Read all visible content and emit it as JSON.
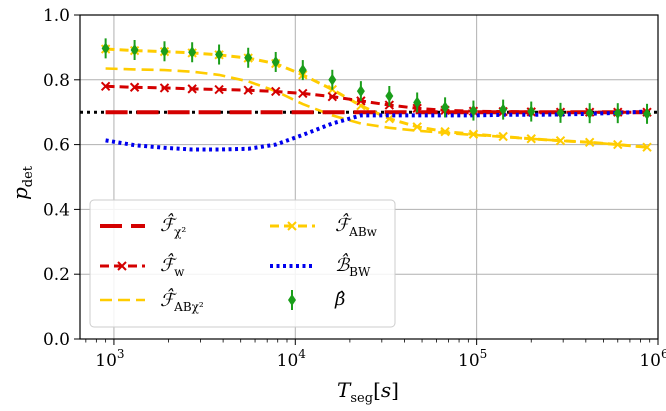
{
  "chart_data": {
    "type": "line",
    "xlabel": "T_seg[s]",
    "ylabel": "p_det",
    "xscale": "log",
    "xlim": [
      650,
      1000000
    ],
    "ylim": [
      0.0,
      1.0
    ],
    "xticks": [
      "10^3",
      "10^4",
      "10^5",
      "10^6"
    ],
    "yticks": [
      "0.0",
      "0.2",
      "0.4",
      "0.6",
      "0.8",
      "1.0"
    ],
    "grid": true,
    "legend_position": "lower-left",
    "reference_line": {
      "y": 0.7,
      "style": "dotted",
      "color": "#000000"
    },
    "x": [
      900,
      1300,
      1900,
      2700,
      3800,
      5500,
      7800,
      11000,
      16000,
      23000,
      33000,
      47000,
      67000,
      96000,
      140000,
      200000,
      290000,
      420000,
      600000,
      870000
    ],
    "series": [
      {
        "name": "F_chi2",
        "color": "#d40000",
        "style": "long-dash",
        "values": [
          0.7,
          0.7,
          0.7,
          0.7,
          0.7,
          0.7,
          0.7,
          0.7,
          0.7,
          0.7,
          0.7,
          0.7,
          0.7,
          0.7,
          0.7,
          0.7,
          0.7,
          0.7,
          0.7,
          0.7
        ]
      },
      {
        "name": "F_w",
        "color": "#d40000",
        "style": "dash-x",
        "values": [
          0.78,
          0.777,
          0.775,
          0.772,
          0.77,
          0.768,
          0.764,
          0.758,
          0.748,
          0.735,
          0.722,
          0.712,
          0.706,
          0.703,
          0.702,
          0.701,
          0.7,
          0.7,
          0.7,
          0.7
        ]
      },
      {
        "name": "F_ABchi2",
        "color": "#ffcc00",
        "style": "dash",
        "values": [
          0.835,
          0.832,
          0.83,
          0.825,
          0.815,
          0.795,
          0.765,
          0.725,
          0.69,
          0.665,
          0.652,
          0.643,
          0.636,
          0.63,
          0.624,
          0.618,
          0.612,
          0.607,
          0.6,
          0.592
        ]
      },
      {
        "name": "F_ABw",
        "color": "#ffcc00",
        "style": "dash-x",
        "values": [
          0.895,
          0.89,
          0.887,
          0.883,
          0.877,
          0.867,
          0.85,
          0.815,
          0.77,
          0.72,
          0.68,
          0.655,
          0.64,
          0.632,
          0.625,
          0.618,
          0.612,
          0.607,
          0.6,
          0.592
        ]
      },
      {
        "name": "B_BW",
        "color": "#0000ee",
        "style": "dotted",
        "values": [
          0.613,
          0.598,
          0.59,
          0.585,
          0.585,
          0.587,
          0.6,
          0.63,
          0.665,
          0.69,
          0.69,
          0.69,
          0.69,
          0.69,
          0.692,
          0.692,
          0.693,
          0.695,
          0.698,
          0.702
        ]
      },
      {
        "name": "beta",
        "color": "#1a9e1a",
        "style": "diamond-errorbar",
        "values": [
          0.897,
          0.892,
          0.888,
          0.885,
          0.878,
          0.868,
          0.855,
          0.83,
          0.8,
          0.765,
          0.75,
          0.73,
          0.715,
          0.705,
          0.708,
          0.702,
          0.698,
          0.697,
          0.697,
          0.695
        ]
      }
    ]
  }
}
